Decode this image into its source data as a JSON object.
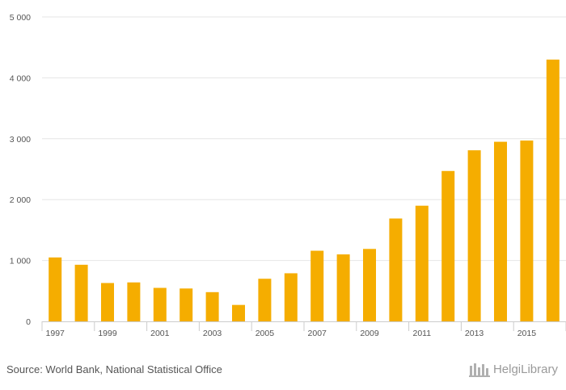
{
  "chart_data": {
    "type": "bar",
    "title": "",
    "xlabel": "",
    "ylabel": "",
    "categories": [
      "1997",
      "1998",
      "1999",
      "2000",
      "2001",
      "2002",
      "2003",
      "2004",
      "2005",
      "2006",
      "2007",
      "2008",
      "2009",
      "2010",
      "2011",
      "2012",
      "2013",
      "2014",
      "2015",
      "2016"
    ],
    "values": [
      1050,
      930,
      630,
      640,
      550,
      540,
      480,
      270,
      700,
      790,
      1160,
      1100,
      1190,
      1690,
      1900,
      2470,
      2810,
      2950,
      2970,
      4300
    ],
    "ylim": [
      0,
      5000
    ],
    "yticks": [
      0,
      1000,
      2000,
      3000,
      4000,
      5000
    ],
    "ytick_labels": [
      "0",
      "1 000",
      "2 000",
      "3 000",
      "4 000",
      "5 000"
    ],
    "xtick_labels": [
      "1997",
      "1999",
      "2001",
      "2003",
      "2005",
      "2007",
      "2009",
      "2011",
      "2013",
      "2015"
    ],
    "bar_color": "#f5ad00",
    "grid": true
  },
  "footer": {
    "source": "Source: World Bank, National Statistical Office",
    "brand": "HelgiLibrary"
  }
}
